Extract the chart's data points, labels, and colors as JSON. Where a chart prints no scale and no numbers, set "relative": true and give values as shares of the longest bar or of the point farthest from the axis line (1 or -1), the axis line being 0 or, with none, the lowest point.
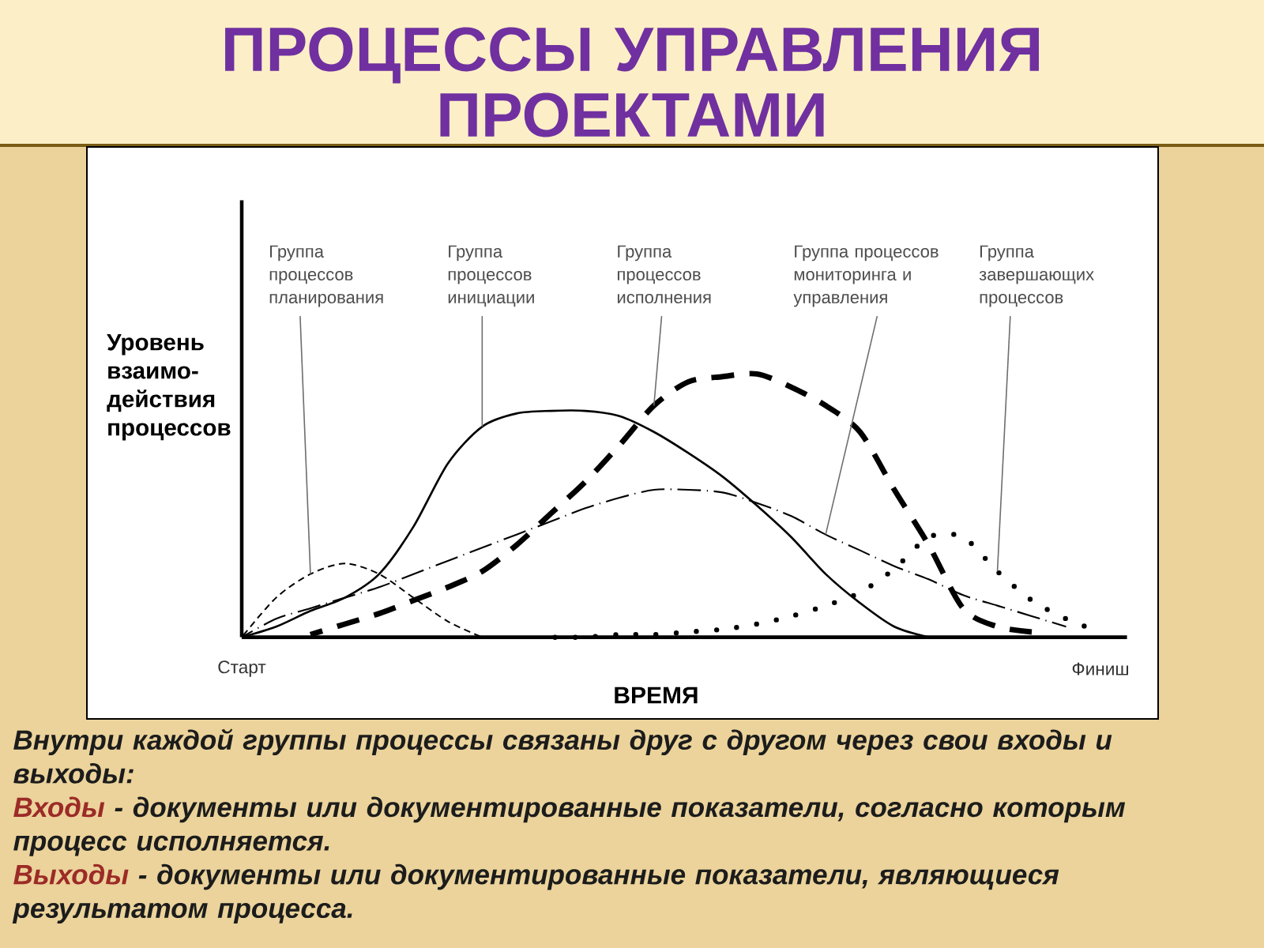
{
  "chart_data": {
    "type": "line",
    "title": "ПРОЦЕССЫ УПРАВЛЕНИЯ ПРОЕКТАМИ",
    "xlabel": "ВРЕМЯ",
    "ylabel": "Уровень взаимо-действия процессов",
    "relative": true,
    "categories": [
      "Старт",
      null,
      null,
      null,
      null,
      null,
      null,
      null,
      null,
      null,
      null,
      null,
      null,
      null,
      null,
      null,
      null,
      null,
      null,
      null,
      null,
      null,
      null,
      null,
      null,
      "Финиш"
    ],
    "series": [
      {
        "name": "Группа процессов планирования",
        "color": "#000000",
        "line_style": "dashed",
        "values": [
          0,
          0.15,
          0.24,
          0.28,
          0.24,
          0.15,
          0.06,
          0,
          null,
          null,
          null,
          null,
          null,
          null,
          null,
          null,
          null,
          null,
          null,
          null,
          null,
          null,
          null,
          null,
          null,
          null
        ]
      },
      {
        "name": "Группа процессов инициации",
        "color": "#000000",
        "line_style": "solid",
        "values": [
          0,
          0.04,
          0.1,
          0.15,
          0.24,
          0.42,
          0.66,
          0.8,
          0.85,
          0.86,
          0.86,
          0.84,
          0.78,
          0.7,
          0.61,
          0.5,
          0.38,
          0.24,
          0.13,
          0.04,
          0,
          null,
          null,
          null,
          null,
          null
        ]
      },
      {
        "name": "Группа процессов исполнения",
        "color": "#000000",
        "line_style": "dashed",
        "values": [
          null,
          null,
          0.01,
          0.05,
          0.09,
          0.14,
          0.19,
          0.25,
          0.35,
          0.47,
          0.59,
          0.73,
          0.88,
          0.97,
          0.99,
          1.0,
          0.95,
          0.88,
          0.78,
          0.56,
          0.35,
          0.11,
          0.04,
          0.02,
          null,
          null
        ]
      },
      {
        "name": "Группа процессов мониторинга и управления",
        "color": "#000000",
        "line_style": "dashdot",
        "values": [
          0,
          0.07,
          0.11,
          0.15,
          0.19,
          0.24,
          0.29,
          0.34,
          0.39,
          0.44,
          0.49,
          0.53,
          0.56,
          0.56,
          0.55,
          0.51,
          0.46,
          0.39,
          0.33,
          0.27,
          0.22,
          0.16,
          0.12,
          0.08,
          0.04,
          null
        ]
      },
      {
        "name": "Группа завершающих процессов",
        "color": "#000000",
        "line_style": "dotted",
        "values": [
          null,
          null,
          null,
          null,
          null,
          null,
          null,
          null,
          null,
          0,
          0,
          0.01,
          0.01,
          0.02,
          0.03,
          0.05,
          0.08,
          0.12,
          0.17,
          0.26,
          0.38,
          0.38,
          0.25,
          0.14,
          0.07,
          0.02
        ]
      }
    ],
    "annotations": [
      "Внутри каждой группы процессы связаны друг с другом через свои входы и выходы:",
      "Входы",
      "- документы или документированные показатели, согласно которым процесс исполняется.",
      "Выходы",
      "- документы или документированные показатели, являющиеся результатом процесса."
    ]
  }
}
